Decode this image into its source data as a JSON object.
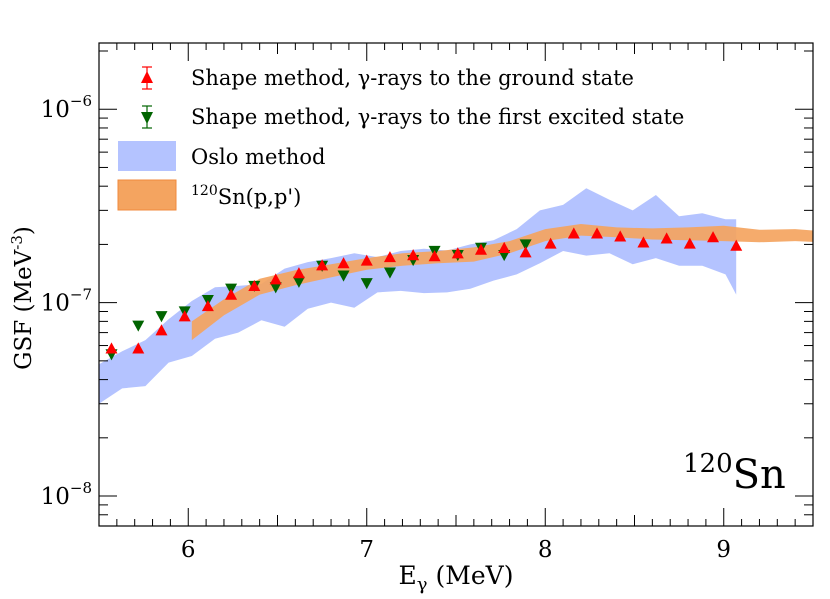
{
  "chart_data": {
    "type": "scatter",
    "title": "",
    "xlabel_main": "E",
    "xlabel_sub": "γ",
    "xlabel_unit": " (MeV)",
    "ylabel_main": "GSF (MeV",
    "ylabel_sup": "-3",
    "ylabel_close": ")",
    "xlim": [
      5.5,
      9.5
    ],
    "ylim": [
      7e-09,
      2.2e-06
    ],
    "yscale": "log",
    "x_ticks": [
      "6",
      "7",
      "8",
      "9"
    ],
    "y_ticks": [
      {
        "base": "10",
        "exp": "−8",
        "value": 1e-08
      },
      {
        "base": "10",
        "exp": "−7",
        "value": 1e-07
      },
      {
        "base": "10",
        "exp": "−6",
        "value": 1e-06
      }
    ],
    "annotation": {
      "sup": "120",
      "text": "Sn"
    },
    "legend": {
      "placement": "top-left",
      "entries": [
        {
          "label": "Shape method, γ-rays to the ground state"
        },
        {
          "label": "Shape method, γ-rays to the first excited state"
        },
        {
          "label": "Oslo method"
        },
        {
          "sup": "120",
          "label": "Sn(p,p')"
        }
      ]
    },
    "series": [
      {
        "name": "Shape method, γ-rays to the ground state",
        "color": "#ff0000",
        "marker": "triangle-up",
        "x": [
          5.57,
          5.72,
          5.85,
          5.98,
          6.11,
          6.24,
          6.37,
          6.49,
          6.62,
          6.75,
          6.87,
          7.0,
          7.13,
          7.26,
          7.38,
          7.51,
          7.64,
          7.77,
          7.89,
          8.03,
          8.16,
          8.29,
          8.42,
          8.55,
          8.68,
          8.81,
          8.94,
          9.07
        ],
        "y": [
          5.8e-08,
          5.8e-08,
          7.2e-08,
          8.5e-08,
          9.6e-08,
          1.1e-07,
          1.22e-07,
          1.32e-07,
          1.42e-07,
          1.56e-07,
          1.6e-07,
          1.65e-07,
          1.72e-07,
          1.76e-07,
          1.74e-07,
          1.8e-07,
          1.88e-07,
          1.92e-07,
          1.82e-07,
          2.02e-07,
          2.28e-07,
          2.28e-07,
          2.2e-07,
          2.05e-07,
          2.15e-07,
          2.02e-07,
          2.18e-07,
          1.97e-07
        ]
      },
      {
        "name": "Shape method, γ-rays to the first excited state",
        "color": "#006400",
        "marker": "triangle-down",
        "x": [
          5.57,
          5.72,
          5.85,
          5.98,
          6.11,
          6.24,
          6.37,
          6.49,
          6.62,
          6.75,
          6.87,
          7.0,
          7.13,
          7.26,
          7.38,
          7.51,
          7.64,
          7.77,
          7.89
        ],
        "y": [
          5.4e-08,
          7.6e-08,
          8.5e-08,
          9e-08,
          1.03e-07,
          1.18e-07,
          1.22e-07,
          1.2e-07,
          1.28e-07,
          1.55e-07,
          1.38e-07,
          1.26e-07,
          1.43e-07,
          1.66e-07,
          1.85e-07,
          1.76e-07,
          1.92e-07,
          1.76e-07,
          2e-07
        ]
      },
      {
        "name": "Oslo method",
        "color": "#b4c3ff",
        "type": "band",
        "x": [
          5.5,
          5.63,
          5.76,
          5.89,
          6.02,
          6.15,
          6.28,
          6.41,
          6.54,
          6.67,
          6.8,
          6.93,
          7.06,
          7.19,
          7.32,
          7.45,
          7.58,
          7.71,
          7.84,
          7.97,
          8.1,
          8.23,
          8.36,
          8.49,
          8.62,
          8.75,
          8.88,
          9.01,
          9.07
        ],
        "upper": [
          4.8e-08,
          5.6e-08,
          6.4e-08,
          8.2e-08,
          1.02e-07,
          1.2e-07,
          1.22e-07,
          1.25e-07,
          1.5e-07,
          1.62e-07,
          1.7e-07,
          1.8e-07,
          1.72e-07,
          1.85e-07,
          1.9e-07,
          1.86e-07,
          2e-07,
          2.1e-07,
          2.4e-07,
          3e-07,
          3.2e-07,
          3.9e-07,
          3.4e-07,
          3e-07,
          3.6e-07,
          2.8e-07,
          2.9e-07,
          2.7e-07,
          2.7e-07
        ],
        "lower": [
          3e-08,
          3.6e-08,
          3.7e-08,
          4.9e-08,
          5.3e-08,
          6.5e-08,
          7e-08,
          8.1e-08,
          7.5e-08,
          9.3e-08,
          1e-07,
          9.4e-08,
          1.13e-07,
          1.15e-07,
          1.12e-07,
          1.13e-07,
          1.18e-07,
          1.3e-07,
          1.4e-07,
          1.6e-07,
          1.85e-07,
          1.75e-07,
          1.8e-07,
          1.58e-07,
          1.7e-07,
          1.55e-07,
          1.55e-07,
          1.4e-07,
          1.1e-07
        ]
      },
      {
        "name": "120Sn(p,p')",
        "color": "#f4a460",
        "type": "band",
        "x": [
          6.02,
          6.2,
          6.4,
          6.6,
          6.8,
          7.0,
          7.2,
          7.4,
          7.6,
          7.8,
          8.0,
          8.2,
          8.4,
          8.6,
          8.8,
          9.0,
          9.2,
          9.4,
          9.5
        ],
        "upper": [
          8e-08,
          1.04e-07,
          1.33e-07,
          1.47e-07,
          1.58e-07,
          1.7e-07,
          1.8e-07,
          1.85e-07,
          1.93e-07,
          2.08e-07,
          2.4e-07,
          2.55e-07,
          2.45e-07,
          2.42e-07,
          2.45e-07,
          2.5e-07,
          2.38e-07,
          2.4e-07,
          2.36e-07
        ],
        "lower": [
          6.4e-08,
          8.6e-08,
          1.1e-07,
          1.23e-07,
          1.35e-07,
          1.48e-07,
          1.55e-07,
          1.6e-07,
          1.63e-07,
          1.8e-07,
          2.08e-07,
          2.22e-07,
          2.18e-07,
          2.12e-07,
          2.1e-07,
          2.08e-07,
          2.05e-07,
          2.08e-07,
          2.06e-07
        ]
      }
    ]
  }
}
